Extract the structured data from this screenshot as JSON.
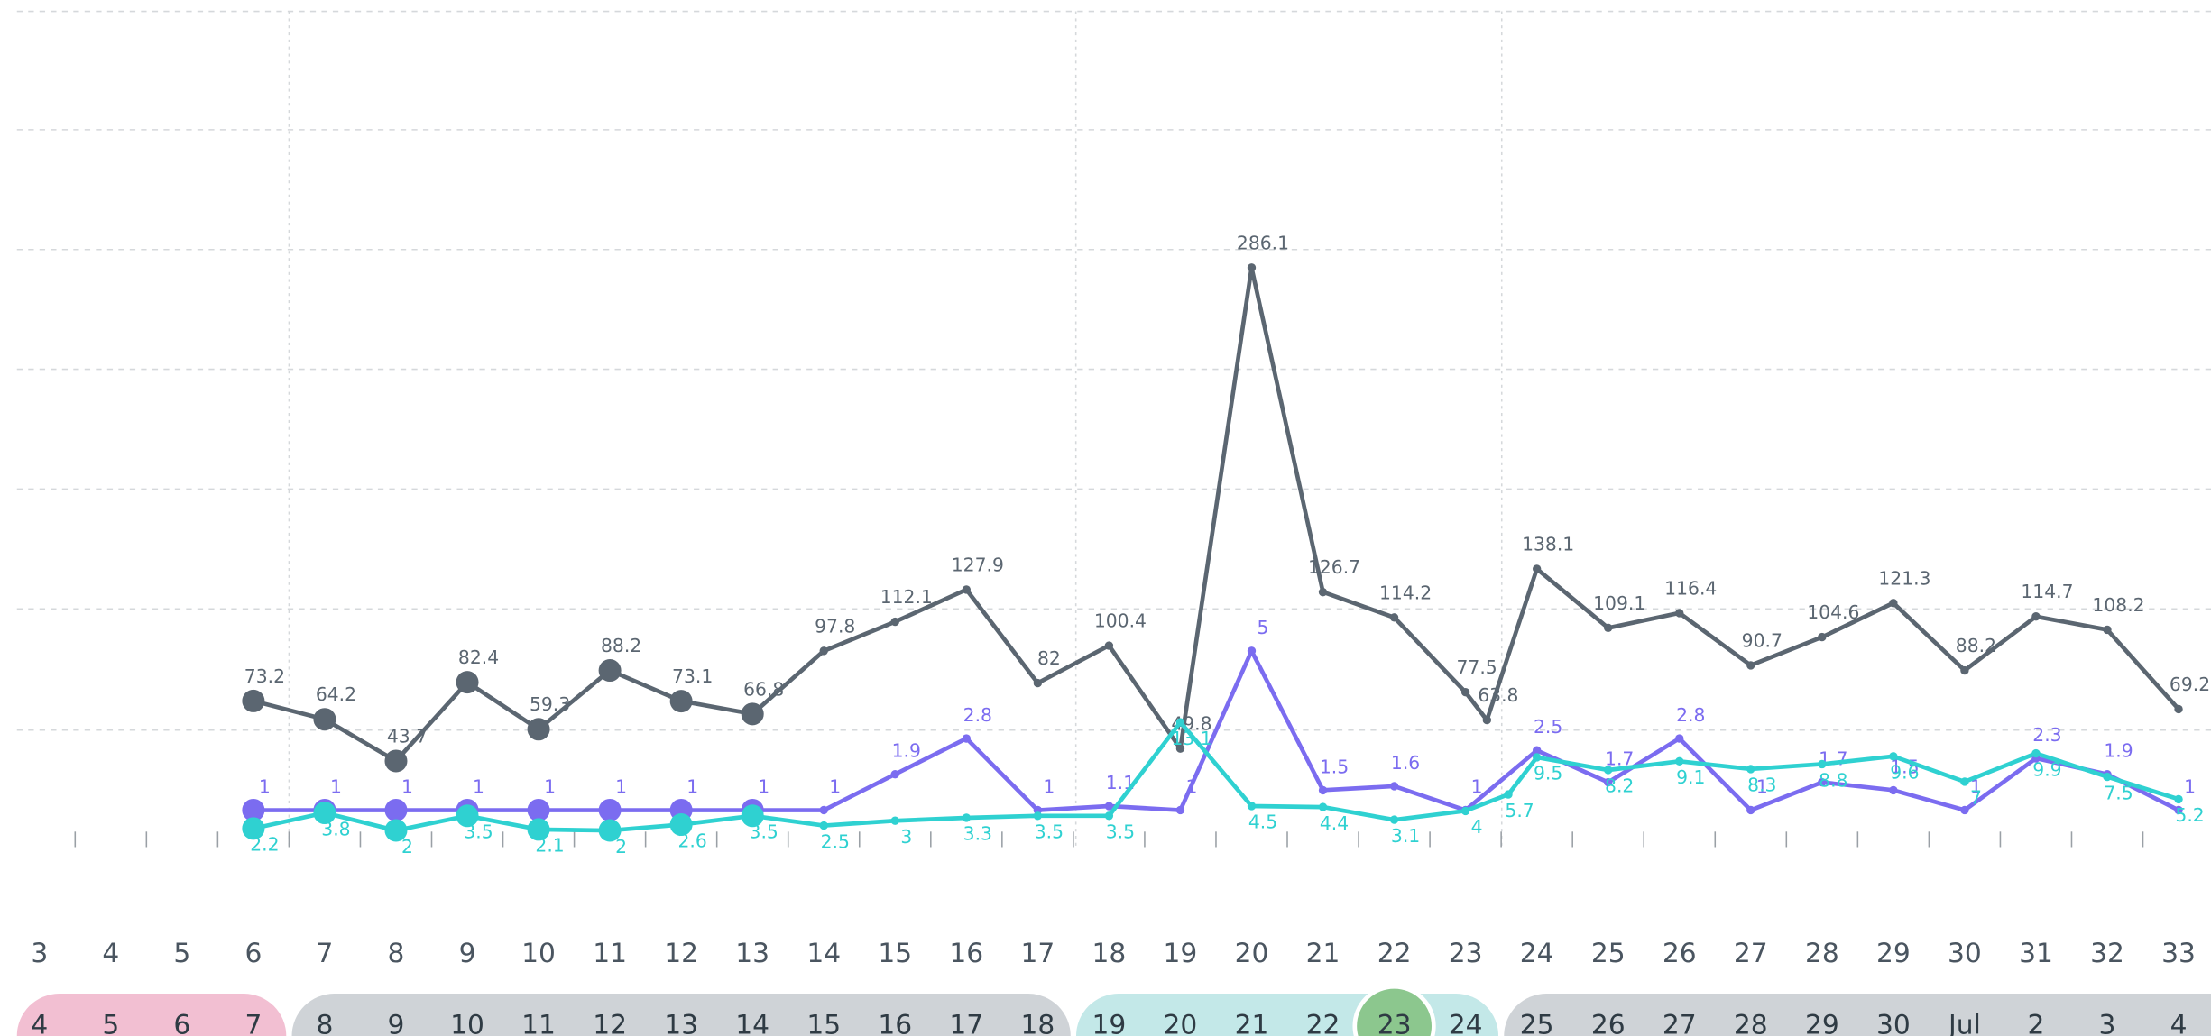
{
  "chart_data": {
    "type": "line",
    "xticks": [
      3,
      4,
      5,
      6,
      7,
      8,
      9,
      10,
      11,
      12,
      13,
      14,
      15,
      16,
      17,
      18,
      19,
      20,
      21,
      22,
      23,
      24,
      25,
      26,
      27,
      28,
      29,
      30,
      31,
      32,
      33
    ],
    "xlim": [
      3,
      33
    ],
    "series": [
      {
        "color": "#5b6671",
        "ylim": [
          0,
          417.6
        ],
        "x": [
          6,
          7,
          8,
          9,
          10,
          11,
          12,
          13,
          14,
          15,
          16,
          17,
          18,
          19,
          20,
          21,
          22,
          23,
          23.3,
          24,
          25,
          26,
          27,
          28,
          29,
          30,
          31,
          32,
          33
        ],
        "values": [
          73.2,
          64.2,
          43.7,
          82.4,
          59.3,
          88.2,
          73.1,
          66.8,
          97.8,
          112.1,
          127.9,
          82,
          100.4,
          49.8,
          286.1,
          126.7,
          114.2,
          77.5,
          63.8,
          138.1,
          109.1,
          116.4,
          90.7,
          104.6,
          121.3,
          88.2,
          114.7,
          108.2,
          69.2
        ]
      },
      {
        "color": "#7b6cf0",
        "ylim": [
          0,
          21.35
        ],
        "x": [
          6,
          7,
          8,
          9,
          10,
          11,
          12,
          13,
          14,
          15,
          16,
          17,
          18,
          19,
          20,
          21,
          22,
          23,
          24,
          25,
          26,
          27,
          28,
          29,
          30,
          31,
          32,
          33
        ],
        "values": [
          1,
          1,
          1,
          1,
          1,
          1,
          1,
          1,
          1,
          1.9,
          2.8,
          1,
          1.1,
          1,
          5,
          1.5,
          1.6,
          1,
          2.5,
          1.7,
          2.8,
          1,
          1.7,
          1.5,
          1,
          2.3,
          1.9,
          1
        ]
      },
      {
        "color": "#2fd1d1",
        "ylim": [
          0,
          87.2
        ],
        "x": [
          6,
          7,
          8,
          9,
          10,
          11,
          12,
          13,
          14,
          15,
          16,
          17,
          18,
          19,
          20,
          21,
          22,
          23,
          23.6,
          24,
          25,
          26,
          27,
          28,
          29,
          30,
          31,
          32,
          33
        ],
        "values": [
          2.2,
          3.8,
          2,
          3.5,
          2.1,
          2,
          2.6,
          3.5,
          2.5,
          3,
          3.3,
          3.5,
          3.5,
          13.1,
          4.5,
          4.4,
          3.1,
          4,
          5.7,
          9.5,
          8.2,
          9.1,
          8.3,
          8.8,
          9.6,
          7,
          9.9,
          7.5,
          5.2
        ]
      }
    ]
  },
  "date_strip": [
    {
      "color": "#f2bfd2",
      "days": [
        "4",
        "5",
        "6",
        "7"
      ]
    },
    {
      "color": "#cfd3d7",
      "days": [
        "8",
        "9",
        "10",
        "11",
        "12",
        "13",
        "14",
        "15",
        "16",
        "17",
        "18"
      ]
    },
    {
      "color": "#c3e8e8",
      "days": [
        "19",
        "20",
        "21",
        "22",
        "23",
        "24"
      ],
      "selected": 4
    },
    {
      "color": "#cfd3d7",
      "days": [
        "25",
        "26",
        "27",
        "28",
        "29",
        "30",
        "Jul",
        "2",
        "3",
        "4"
      ]
    }
  ]
}
